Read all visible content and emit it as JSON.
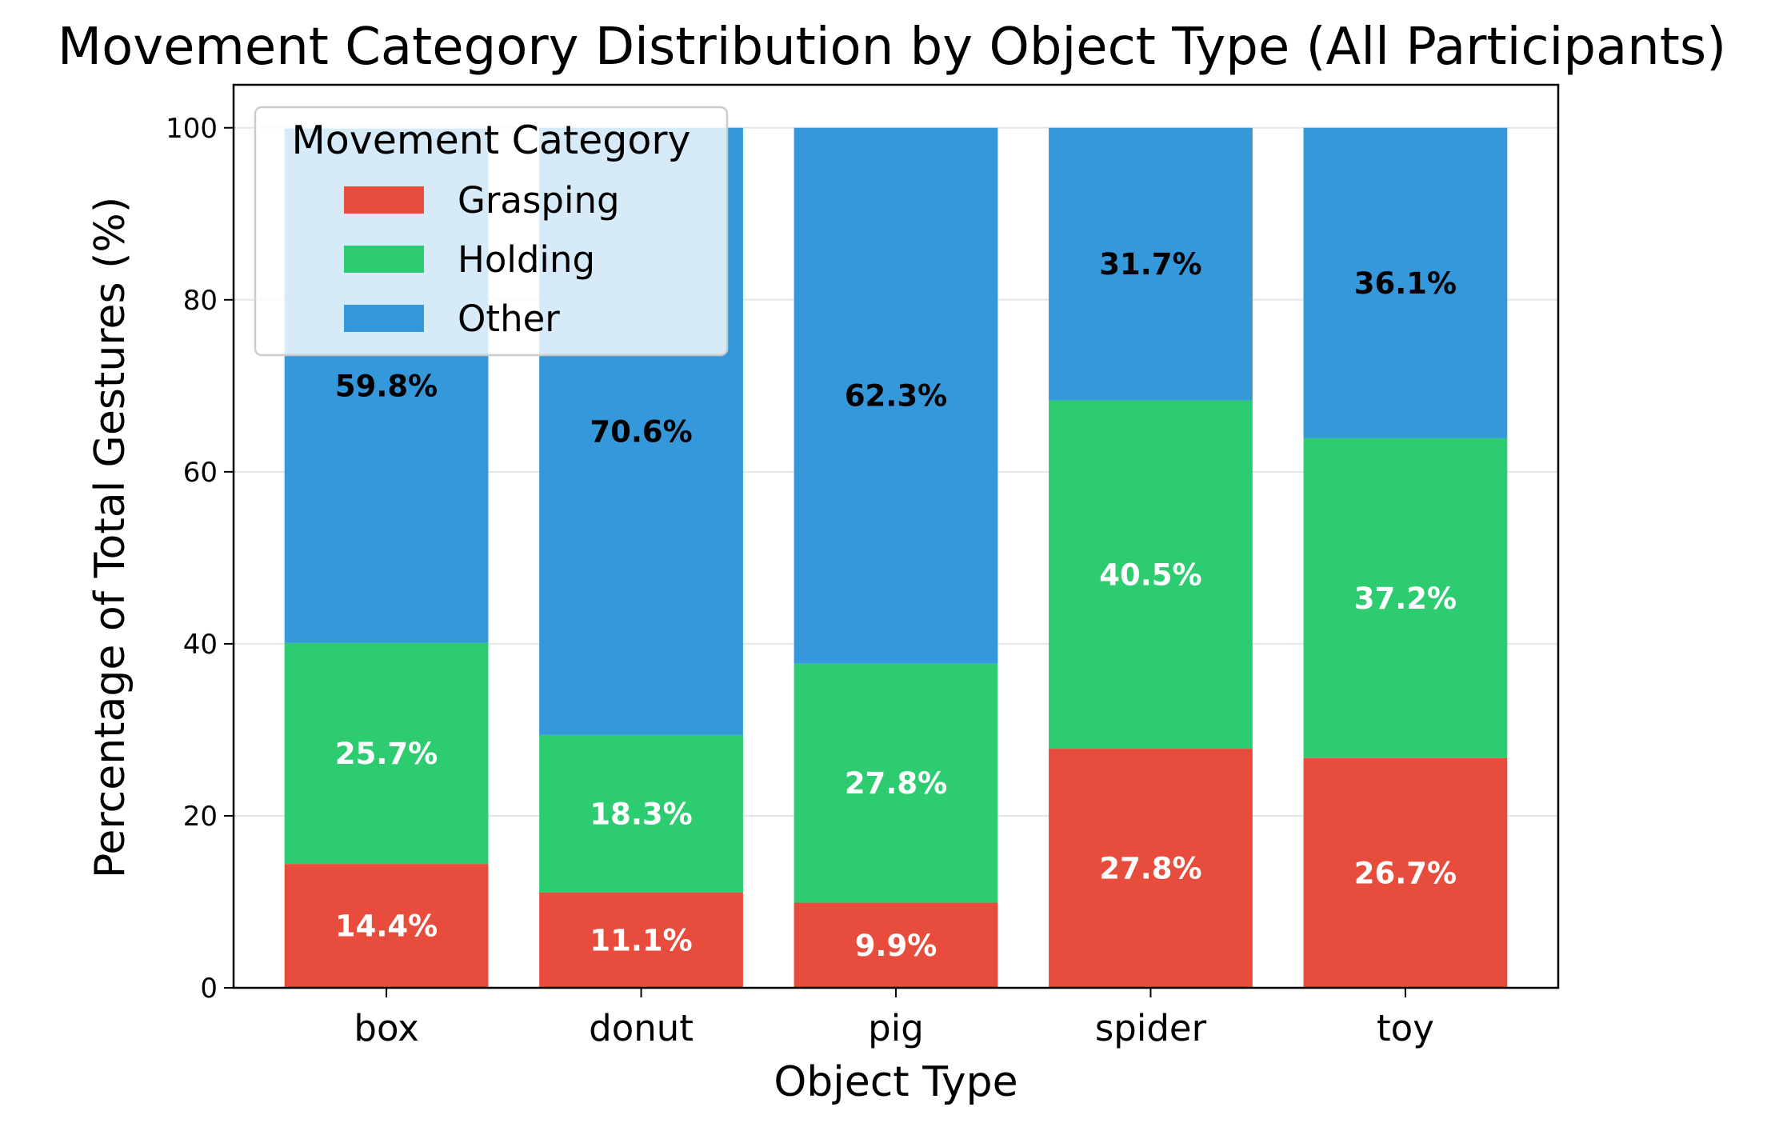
{
  "chart_data": {
    "type": "bar",
    "stacked": true,
    "title": "Movement Category Distribution by Object Type (All Participants)",
    "xlabel": "Object Type",
    "ylabel": "Percentage of Total Gestures (%)",
    "ylim": [
      0,
      105
    ],
    "yticks": [
      0,
      20,
      40,
      60,
      80,
      100
    ],
    "grid": "y",
    "categories": [
      "box",
      "donut",
      "pig",
      "spider",
      "toy"
    ],
    "series": [
      {
        "name": "Grasping",
        "color": "#e74c3c",
        "label_color": "#ffffff",
        "values": [
          14.4,
          11.1,
          9.9,
          27.8,
          26.7
        ],
        "labels": [
          "14.4%",
          "11.1%",
          "9.9%",
          "27.8%",
          "26.7%"
        ]
      },
      {
        "name": "Holding",
        "color": "#2ecc71",
        "label_color": "#ffffff",
        "values": [
          25.7,
          18.3,
          27.8,
          40.5,
          37.2
        ],
        "labels": [
          "25.7%",
          "18.3%",
          "27.8%",
          "40.5%",
          "37.2%"
        ]
      },
      {
        "name": "Other",
        "color": "#3498db",
        "label_color": "#000000",
        "values": [
          59.8,
          70.6,
          62.3,
          31.7,
          36.1
        ],
        "labels": [
          "59.8%",
          "70.6%",
          "62.3%",
          "31.7%",
          "36.1%"
        ]
      }
    ],
    "legend": {
      "title": "Movement Category",
      "placement": "upper-left"
    }
  }
}
